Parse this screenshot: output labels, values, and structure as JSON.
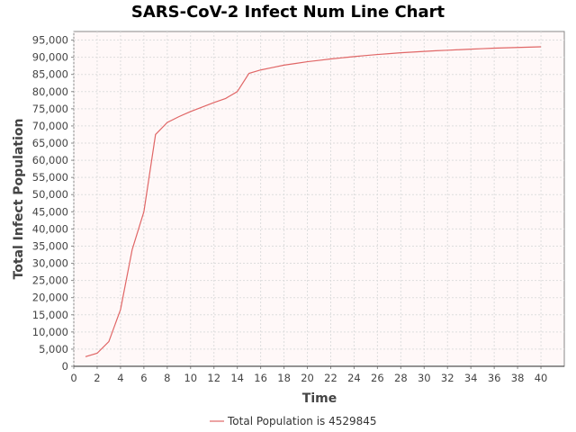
{
  "chart_data": {
    "type": "line",
    "title": "SARS-CoV-2 Infect Num Line Chart",
    "xlabel": "Time",
    "ylabel": "Total Infect Population",
    "xlim": [
      0,
      42
    ],
    "ylim": [
      0,
      97500
    ],
    "x_ticks": [
      0,
      2,
      4,
      6,
      8,
      10,
      12,
      14,
      16,
      18,
      20,
      22,
      24,
      26,
      28,
      30,
      32,
      34,
      36,
      38,
      40
    ],
    "y_ticks": [
      0,
      5000,
      10000,
      15000,
      20000,
      25000,
      30000,
      35000,
      40000,
      45000,
      50000,
      55000,
      60000,
      65000,
      70000,
      75000,
      80000,
      85000,
      90000,
      95000
    ],
    "grid": true,
    "legend_position": "bottom",
    "colors": {
      "series": "#e06666",
      "plot_background": "#fff8f8",
      "grid": "#dddddd"
    },
    "series": [
      {
        "name": "Total Population is 4529845",
        "x": [
          1,
          2,
          3,
          4,
          5,
          6,
          7,
          8,
          9,
          10,
          11,
          12,
          13,
          14,
          15,
          16,
          17,
          18,
          19,
          20,
          21,
          22,
          23,
          24,
          25,
          26,
          27,
          28,
          29,
          30,
          31,
          32,
          33,
          34,
          35,
          36,
          37,
          38,
          39,
          40
        ],
        "y": [
          2800,
          3800,
          7200,
          16500,
          34000,
          45000,
          67500,
          71000,
          72700,
          74200,
          75500,
          76800,
          78000,
          80000,
          85300,
          86300,
          87000,
          87700,
          88200,
          88700,
          89100,
          89500,
          89850,
          90200,
          90500,
          90800,
          91050,
          91300,
          91500,
          91700,
          91900,
          92050,
          92200,
          92350,
          92500,
          92650,
          92750,
          92850,
          92950,
          93050
        ]
      }
    ]
  }
}
